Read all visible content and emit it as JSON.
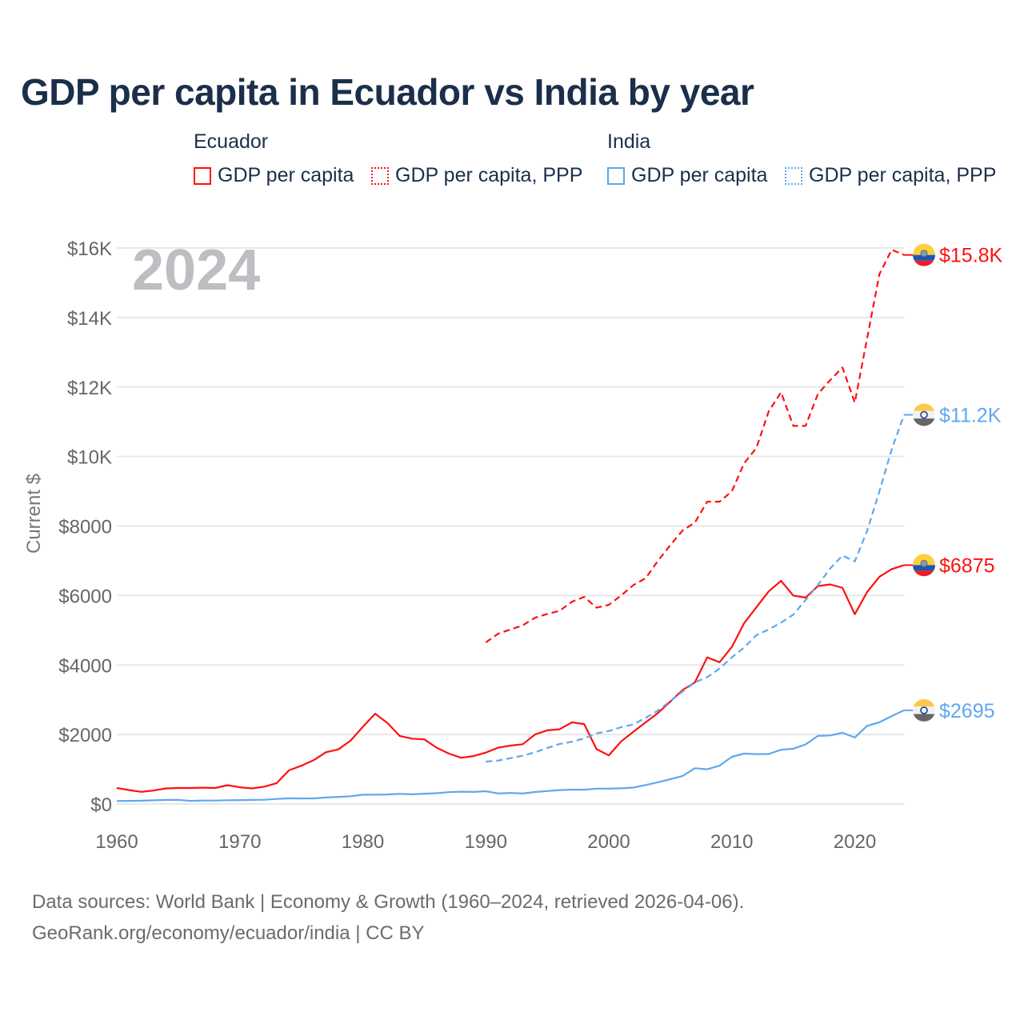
{
  "title": "GDP per capita in Ecuador vs India by year",
  "legend": {
    "groups": [
      {
        "name": "Ecuador",
        "items": [
          "GDP per capita",
          "GDP per capita, PPP"
        ]
      },
      {
        "name": "India",
        "items": [
          "GDP per capita",
          "GDP per capita, PPP"
        ]
      }
    ]
  },
  "year_watermark": "2024",
  "footer": {
    "line1": "Data sources: World Bank | Economy & Growth (1960–2024, retrieved 2026-04-06).",
    "line2": "GeoRank.org/economy/ecuador/india | CC BY"
  },
  "colors": {
    "ecuador": "#ff1010",
    "india": "#5ea8ee",
    "grid": "#e8e8e8",
    "tick": "#666666"
  },
  "chart_data": {
    "type": "line",
    "title": "GDP per capita in Ecuador vs India by year",
    "xlabel": "",
    "ylabel": "Current $",
    "xlim": [
      1960,
      2024
    ],
    "ylim": [
      0,
      16000
    ],
    "x_ticks": [
      1960,
      1970,
      1980,
      1990,
      2000,
      2010,
      2020
    ],
    "x_tick_labels": [
      "1960",
      "1970",
      "1980",
      "1990",
      "2000",
      "2010",
      "2020"
    ],
    "y_ticks": [
      0,
      2000,
      4000,
      6000,
      8000,
      10000,
      12000,
      14000,
      16000
    ],
    "y_tick_labels": [
      "$0",
      "$2000",
      "$4000",
      "$6000",
      "$8000",
      "$10K",
      "$12K",
      "$14K",
      "$16K"
    ],
    "grid": true,
    "legend_position": "top",
    "series": [
      {
        "name": "Ecuador GDP per capita",
        "country": "ecuador",
        "style": "solid",
        "start": 1960,
        "end_label": "$6875",
        "values": [
          460,
          400,
          350,
          390,
          450,
          460,
          460,
          470,
          460,
          540,
          480,
          450,
          500,
          600,
          970,
          1100,
          1260,
          1490,
          1570,
          1820,
          2220,
          2600,
          2330,
          1960,
          1880,
          1860,
          1620,
          1450,
          1330,
          1380,
          1480,
          1620,
          1680,
          1720,
          2000,
          2120,
          2150,
          2350,
          2300,
          1580,
          1400,
          1800,
          2080,
          2350,
          2620,
          2950,
          3280,
          3500,
          4220,
          4080,
          4520,
          5200,
          5660,
          6120,
          6420,
          6000,
          5940,
          6270,
          6320,
          6220,
          5460,
          6100,
          6540,
          6760,
          6875
        ]
      },
      {
        "name": "Ecuador GDP per capita, PPP",
        "country": "ecuador",
        "style": "dashed",
        "start": 1990,
        "end_label": "$15.8K",
        "values": [
          4650,
          4900,
          5020,
          5140,
          5360,
          5470,
          5560,
          5820,
          5960,
          5650,
          5730,
          6000,
          6300,
          6500,
          7000,
          7450,
          7870,
          8100,
          8700,
          8700,
          9000,
          9800,
          10250,
          11300,
          11850,
          10880,
          10880,
          11800,
          12200,
          12560,
          11550,
          13400,
          15250,
          15950,
          15800
        ]
      },
      {
        "name": "India GDP per capita",
        "country": "india",
        "style": "solid",
        "start": 1960,
        "end_label": "$2695",
        "values": [
          85,
          90,
          95,
          105,
          118,
          120,
          90,
          98,
          100,
          108,
          112,
          118,
          122,
          144,
          163,
          158,
          161,
          186,
          206,
          224,
          267,
          270,
          275,
          293,
          278,
          296,
          310,
          340,
          355,
          347,
          368,
          303,
          317,
          301,
          346,
          374,
          400,
          415,
          413,
          442,
          443,
          452,
          471,
          546,
          627,
          714,
          807,
          1028,
          999,
          1102,
          1358,
          1450,
          1434,
          1438,
          1560,
          1590,
          1714,
          1958,
          1974,
          2050,
          1913,
          2250,
          2350,
          2530,
          2695
        ]
      },
      {
        "name": "India GDP per capita, PPP",
        "country": "india",
        "style": "dashed",
        "start": 1990,
        "end_label": "$11.2K",
        "values": [
          1220,
          1250,
          1320,
          1390,
          1490,
          1610,
          1730,
          1790,
          1890,
          2030,
          2100,
          2210,
          2290,
          2480,
          2690,
          2960,
          3240,
          3500,
          3650,
          3900,
          4220,
          4500,
          4860,
          5020,
          5220,
          5450,
          5870,
          6300,
          6780,
          7150,
          6980,
          7860,
          9000,
          10200,
          11200
        ]
      }
    ]
  }
}
